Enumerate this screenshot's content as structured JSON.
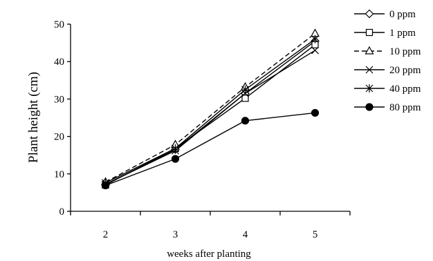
{
  "chart_data": {
    "type": "line",
    "x": [
      2,
      3,
      4,
      5
    ],
    "xlabel": "weeks after planting",
    "ylabel": "Plant height (cm)",
    "ylim": [
      0,
      50
    ],
    "yticks": [
      0,
      10,
      20,
      30,
      40,
      50
    ],
    "grid": false,
    "legend": "right",
    "series": [
      {
        "name": "0 ppm",
        "marker": "diamond",
        "dash": "solid",
        "values": [
          7.2,
          16.5,
          31.5,
          45.5
        ]
      },
      {
        "name": "1 ppm",
        "marker": "square",
        "dash": "solid",
        "values": [
          7.0,
          16.8,
          30.2,
          44.5
        ]
      },
      {
        "name": "10 ppm",
        "marker": "triangle",
        "dash": "dashed",
        "values": [
          7.8,
          17.8,
          33.2,
          47.5
        ]
      },
      {
        "name": "20 ppm",
        "marker": "x",
        "dash": "solid",
        "values": [
          7.2,
          16.2,
          31.5,
          43.0
        ]
      },
      {
        "name": "40 ppm",
        "marker": "asterisk",
        "dash": "solid",
        "values": [
          7.6,
          16.8,
          32.5,
          46.0
        ]
      },
      {
        "name": "80 ppm",
        "marker": "circle",
        "dash": "solid",
        "values": [
          6.9,
          14.0,
          24.2,
          26.3
        ]
      }
    ]
  }
}
